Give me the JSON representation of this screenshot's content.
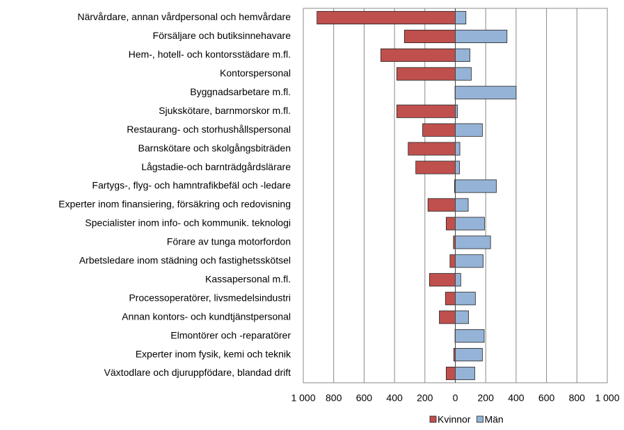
{
  "chart_data": {
    "type": "butterfly-bar",
    "categories": [
      "Närvårdare, annan vårdpersonal och hemvårdare",
      "Försäljare och butiksinnehavare",
      "Hem-, hotell- och kontorsstädare m.fl.",
      "Kontorspersonal",
      "Byggnadsarbetare m.fl.",
      "Sjukskötare, barnmorskor m.fl.",
      "Restaurang- och storhushållspersonal",
      "Barnskötare och skolgångsbiträden",
      "Lågstadie-och barnträdgårdslärare",
      "Fartygs-, flyg- och hamntrafikbefäl och -ledare",
      "Experter inom finansiering, försäkring och redovisning",
      "Specialister inom info- och kommunik. teknologi",
      "Förare av tunga motorfordon",
      "Arbetsledare inom städning och fastighetsskötsel",
      "Kassapersonal m.fl.",
      "Processoperatörer, livsmedelsindustri",
      "Annan kontors- och kundtjänstpersonal",
      "Elmontörer och -reparatörer",
      "Experter inom fysik, kemi och teknik",
      "Växtodlare och djuruppfödare, blandad drift"
    ],
    "series": [
      {
        "name": "Kvinnor",
        "color": "#c0504d",
        "values": [
          -910,
          -335,
          -490,
          -385,
          -2,
          -385,
          -215,
          -310,
          -260,
          -5,
          -180,
          -60,
          -12,
          -35,
          -170,
          -65,
          -105,
          -2,
          -10,
          -60
        ]
      },
      {
        "name": "Män",
        "color": "#95b3d7",
        "values": [
          70,
          340,
          96,
          105,
          400,
          14,
          178,
          30,
          28,
          270,
          85,
          192,
          232,
          183,
          36,
          132,
          87,
          190,
          178,
          128
        ]
      }
    ],
    "xlim": [
      -1000,
      1000
    ],
    "xticks": [
      {
        "value": -1000,
        "label": "1 000"
      },
      {
        "value": -800,
        "label": "800"
      },
      {
        "value": -600,
        "label": "600"
      },
      {
        "value": -400,
        "label": "400"
      },
      {
        "value": -200,
        "label": "200"
      },
      0,
      200,
      400,
      600,
      800,
      {
        "value": 1000,
        "label": "1 000"
      }
    ],
    "grid": true,
    "legend": "bottom-right"
  }
}
